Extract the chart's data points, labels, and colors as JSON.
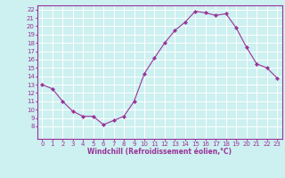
{
  "x": [
    0,
    1,
    2,
    3,
    4,
    5,
    6,
    7,
    8,
    9,
    10,
    11,
    12,
    13,
    14,
    15,
    16,
    17,
    18,
    19,
    20,
    21,
    22,
    23
  ],
  "y": [
    13,
    12.5,
    11,
    9.8,
    9.2,
    9.2,
    8.2,
    8.7,
    9.2,
    11.0,
    14.3,
    16.2,
    18.0,
    19.5,
    20.5,
    21.8,
    21.6,
    21.3,
    21.5,
    19.8,
    17.5,
    15.5,
    15.0,
    13.8
  ],
  "xlim": [
    -0.5,
    23.5
  ],
  "ylim": [
    6.5,
    22.5
  ],
  "yticks": [
    8,
    9,
    10,
    11,
    12,
    13,
    14,
    15,
    16,
    17,
    18,
    19,
    20,
    21,
    22
  ],
  "xticks": [
    0,
    1,
    2,
    3,
    4,
    5,
    6,
    7,
    8,
    9,
    10,
    11,
    12,
    13,
    14,
    15,
    16,
    17,
    18,
    19,
    20,
    21,
    22,
    23
  ],
  "xlabel": "Windchill (Refroidissement éolien,°C)",
  "line_color": "#993399",
  "marker": "D",
  "marker_size": 2.2,
  "background_color": "#cdf0f0",
  "grid_color": "#ffffff",
  "tick_label_color": "#993399",
  "xlabel_color": "#993399",
  "tick_fontsize": 5,
  "xlabel_fontsize": 5.5
}
